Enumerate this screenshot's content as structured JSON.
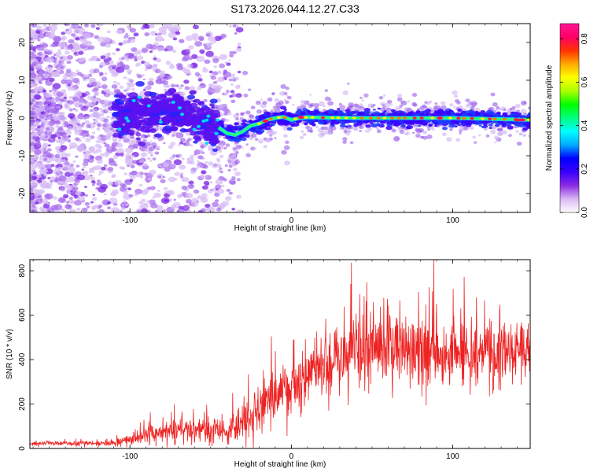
{
  "title": "S173.2026.044.12.27.C33",
  "chart_data": [
    {
      "type": "heatmap",
      "xlabel": "Height of straight line (km)",
      "ylabel": "Frequency (Hz)",
      "xlim": [
        -162,
        148
      ],
      "ylim": [
        -25,
        25
      ],
      "x_ticks": [
        -100,
        0,
        100
      ],
      "y_ticks": [
        -20,
        -10,
        0,
        10,
        20
      ],
      "colorbar": {
        "label": "Normalized spectral amplitude",
        "range": [
          0,
          0.87
        ],
        "ticks": [
          "0.0",
          "0.2",
          "0.4",
          "0.6",
          "0.8"
        ],
        "colormap": [
          "#ffffff",
          "#d9b8f5",
          "#8a2be2",
          "#3a00ff",
          "#0000ff",
          "#00aaff",
          "#00ffff",
          "#00ff7f",
          "#00ff00",
          "#aaff00",
          "#ffff00",
          "#ffaa00",
          "#ff3300",
          "#ff0066",
          "#ff1493"
        ]
      },
      "ridge": {
        "x": [
          -162,
          -120,
          -100,
          -90,
          -80,
          -70,
          -60,
          -55,
          -48,
          -45,
          -40,
          -35,
          -30,
          -25,
          -20,
          -15,
          -10,
          -5,
          0,
          5,
          10,
          20,
          40,
          60,
          80,
          100,
          120,
          148
        ],
        "y": [
          0,
          0,
          0.5,
          1.5,
          2,
          1.5,
          0,
          -1,
          -2,
          -2.5,
          -4,
          -4.5,
          -3.5,
          -2,
          -1.5,
          -0.5,
          0,
          0.3,
          -0.5,
          0,
          0.2,
          0.1,
          0,
          0,
          0,
          0,
          -0.2,
          -0.5
        ]
      }
    },
    {
      "type": "line",
      "xlabel": "Height of straight line (km)",
      "ylabel": "SNR (10 * v/v)",
      "xlim": [
        -162,
        148
      ],
      "ylim": [
        0,
        850
      ],
      "x_ticks": [
        -100,
        0,
        100
      ],
      "y_ticks": [
        0,
        200,
        400,
        600,
        800
      ],
      "series": [
        {
          "color": "#ee2222",
          "envelope": {
            "x": [
              -162,
              -110,
              -100,
              -90,
              -80,
              -70,
              -60,
              -50,
              -40,
              -30,
              -20,
              -10,
              0,
              10,
              20,
              30,
              40,
              50,
              60,
              70,
              80,
              90,
              100,
              110,
              120,
              130,
              140,
              148
            ],
            "mean": [
              22,
              24,
              40,
              60,
              75,
              85,
              95,
              80,
              75,
              120,
              180,
              250,
              300,
              340,
              380,
              420,
              440,
              450,
              450,
              445,
              430,
              440,
              430,
              435,
              440,
              440,
              445,
              450
            ],
            "spread": [
              8,
              10,
              20,
              35,
              45,
              50,
              55,
              50,
              50,
              70,
              90,
              110,
              120,
              130,
              140,
              150,
              150,
              150,
              145,
              140,
              135,
              135,
              130,
              125,
              120,
              115,
              110,
              105
            ]
          }
        }
      ]
    }
  ]
}
